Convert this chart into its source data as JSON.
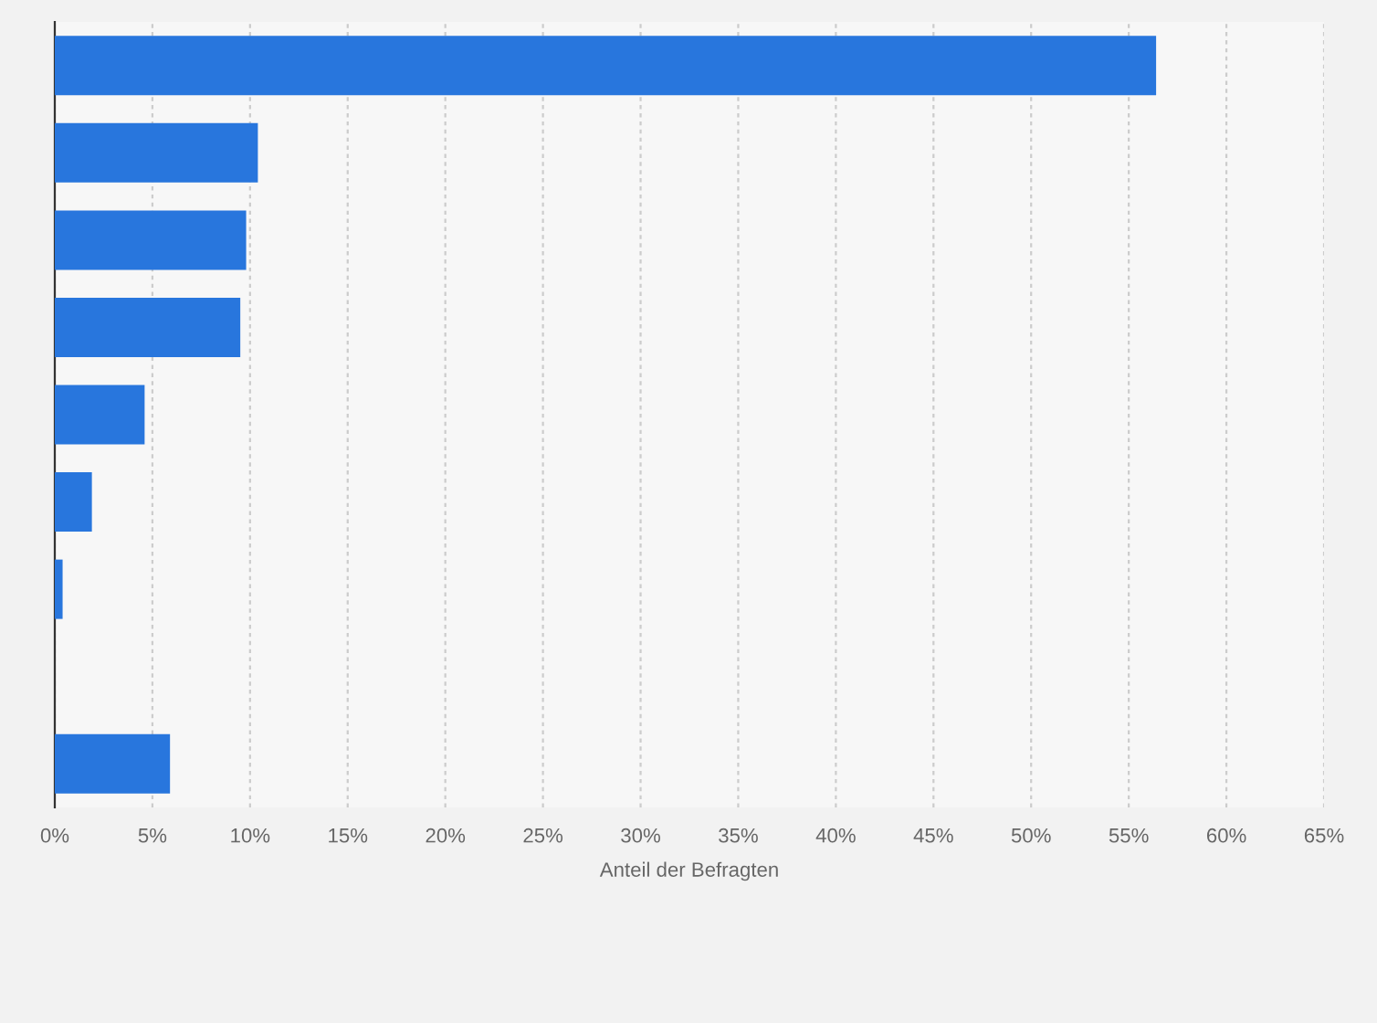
{
  "chart_data": {
    "type": "bar",
    "orientation": "horizontal",
    "xlabel": "Anteil der Befragten",
    "categories": [
      null,
      null,
      null,
      null,
      null,
      null,
      null,
      null,
      null
    ],
    "values": [
      56.4,
      10.4,
      9.8,
      9.5,
      4.6,
      1.9,
      0.4,
      0,
      5.9
    ],
    "color": "#2876dd",
    "xlim": [
      0,
      65
    ],
    "xticks": [
      {
        "value": 0,
        "label": "0%"
      },
      {
        "value": 5,
        "label": "5%"
      },
      {
        "value": 10,
        "label": "10%"
      },
      {
        "value": 15,
        "label": "15%"
      },
      {
        "value": 20,
        "label": "20%"
      },
      {
        "value": 25,
        "label": "25%"
      },
      {
        "value": 30,
        "label": "30%"
      },
      {
        "value": 35,
        "label": "35%"
      },
      {
        "value": 40,
        "label": "40%"
      },
      {
        "value": 45,
        "label": "45%"
      },
      {
        "value": 50,
        "label": "50%"
      },
      {
        "value": 55,
        "label": "55%"
      },
      {
        "value": 60,
        "label": "60%"
      },
      {
        "value": 65,
        "label": "65%"
      }
    ],
    "grid": "x"
  }
}
